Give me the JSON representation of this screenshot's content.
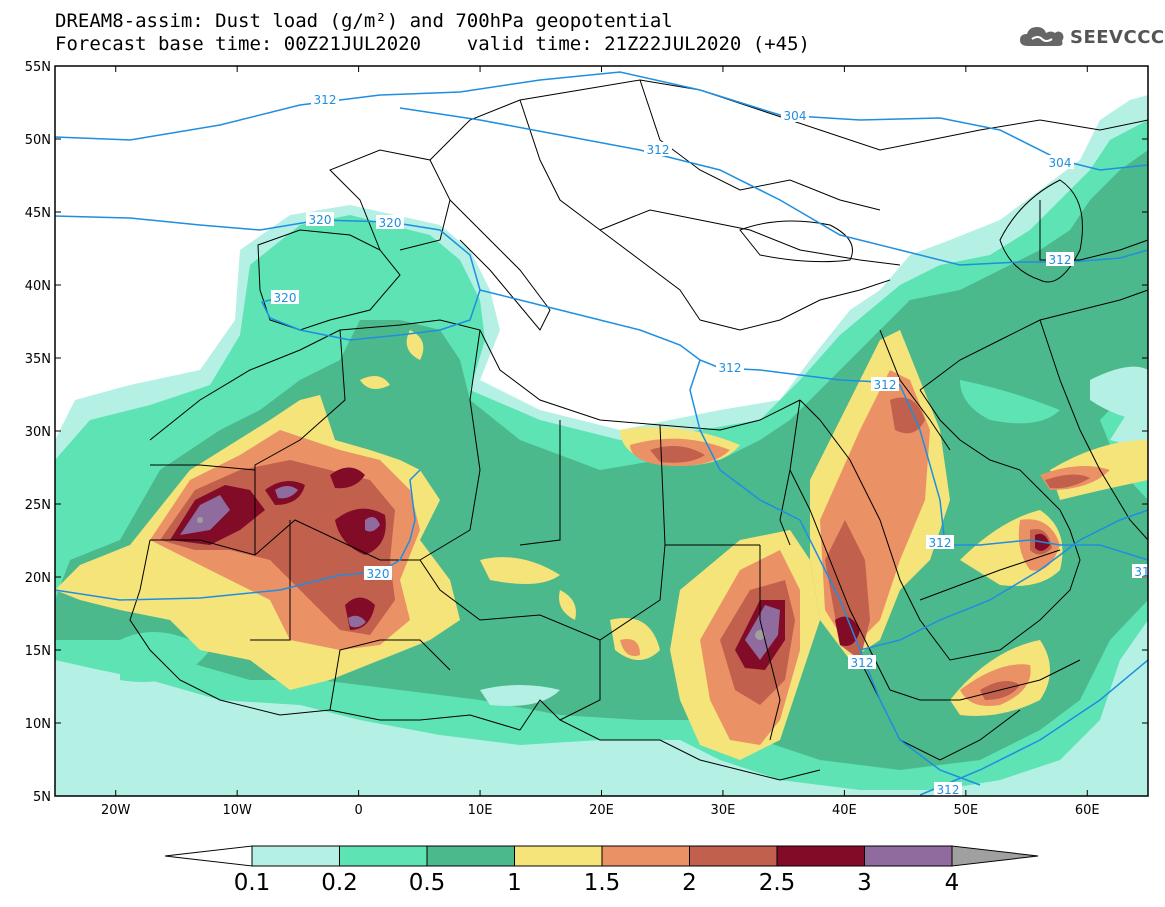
{
  "title": {
    "line1": "DREAM8-assim: Dust load (g/m²) and 700hPa geopotential",
    "line2": "Forecast base time: 00Z21JUL2020    valid time: 21Z22JUL2020 (+45)"
  },
  "logo": {
    "text": "SEEVCCC",
    "icon": "cloud-icon"
  },
  "map": {
    "lon_range": [
      -25,
      65
    ],
    "lat_range": [
      5,
      55
    ],
    "lat_ticks": [
      "55N",
      "50N",
      "45N",
      "40N",
      "35N",
      "30N",
      "25N",
      "20N",
      "15N",
      "10N",
      "5N"
    ],
    "lon_ticks": [
      "20W",
      "10W",
      "0",
      "10E",
      "20E",
      "30E",
      "40E",
      "50E",
      "60E"
    ],
    "contour_labels": [
      {
        "text": "312"
      },
      {
        "text": "304"
      },
      {
        "text": "312"
      },
      {
        "text": "304"
      },
      {
        "text": "320"
      },
      {
        "text": "320"
      },
      {
        "text": "320"
      },
      {
        "text": "312"
      },
      {
        "text": "312"
      },
      {
        "text": "312"
      },
      {
        "text": "312"
      },
      {
        "text": "320"
      },
      {
        "text": "312"
      },
      {
        "text": "312"
      },
      {
        "text": "31"
      }
    ]
  },
  "colorbar": {
    "labels": [
      "0.1",
      "0.2",
      "0.5",
      "1",
      "1.5",
      "2",
      "2.5",
      "3",
      "4"
    ],
    "colors": [
      "#b4f0e4",
      "#5de3b4",
      "#4cb98c",
      "#f5e47a",
      "#eb9166",
      "#c1604c",
      "#820c28",
      "#8f6b9e",
      "#a0a0a0"
    ],
    "below_color": "#ffffff"
  },
  "colors": {
    "contour": "#1e8ee0",
    "border": "#000000"
  }
}
